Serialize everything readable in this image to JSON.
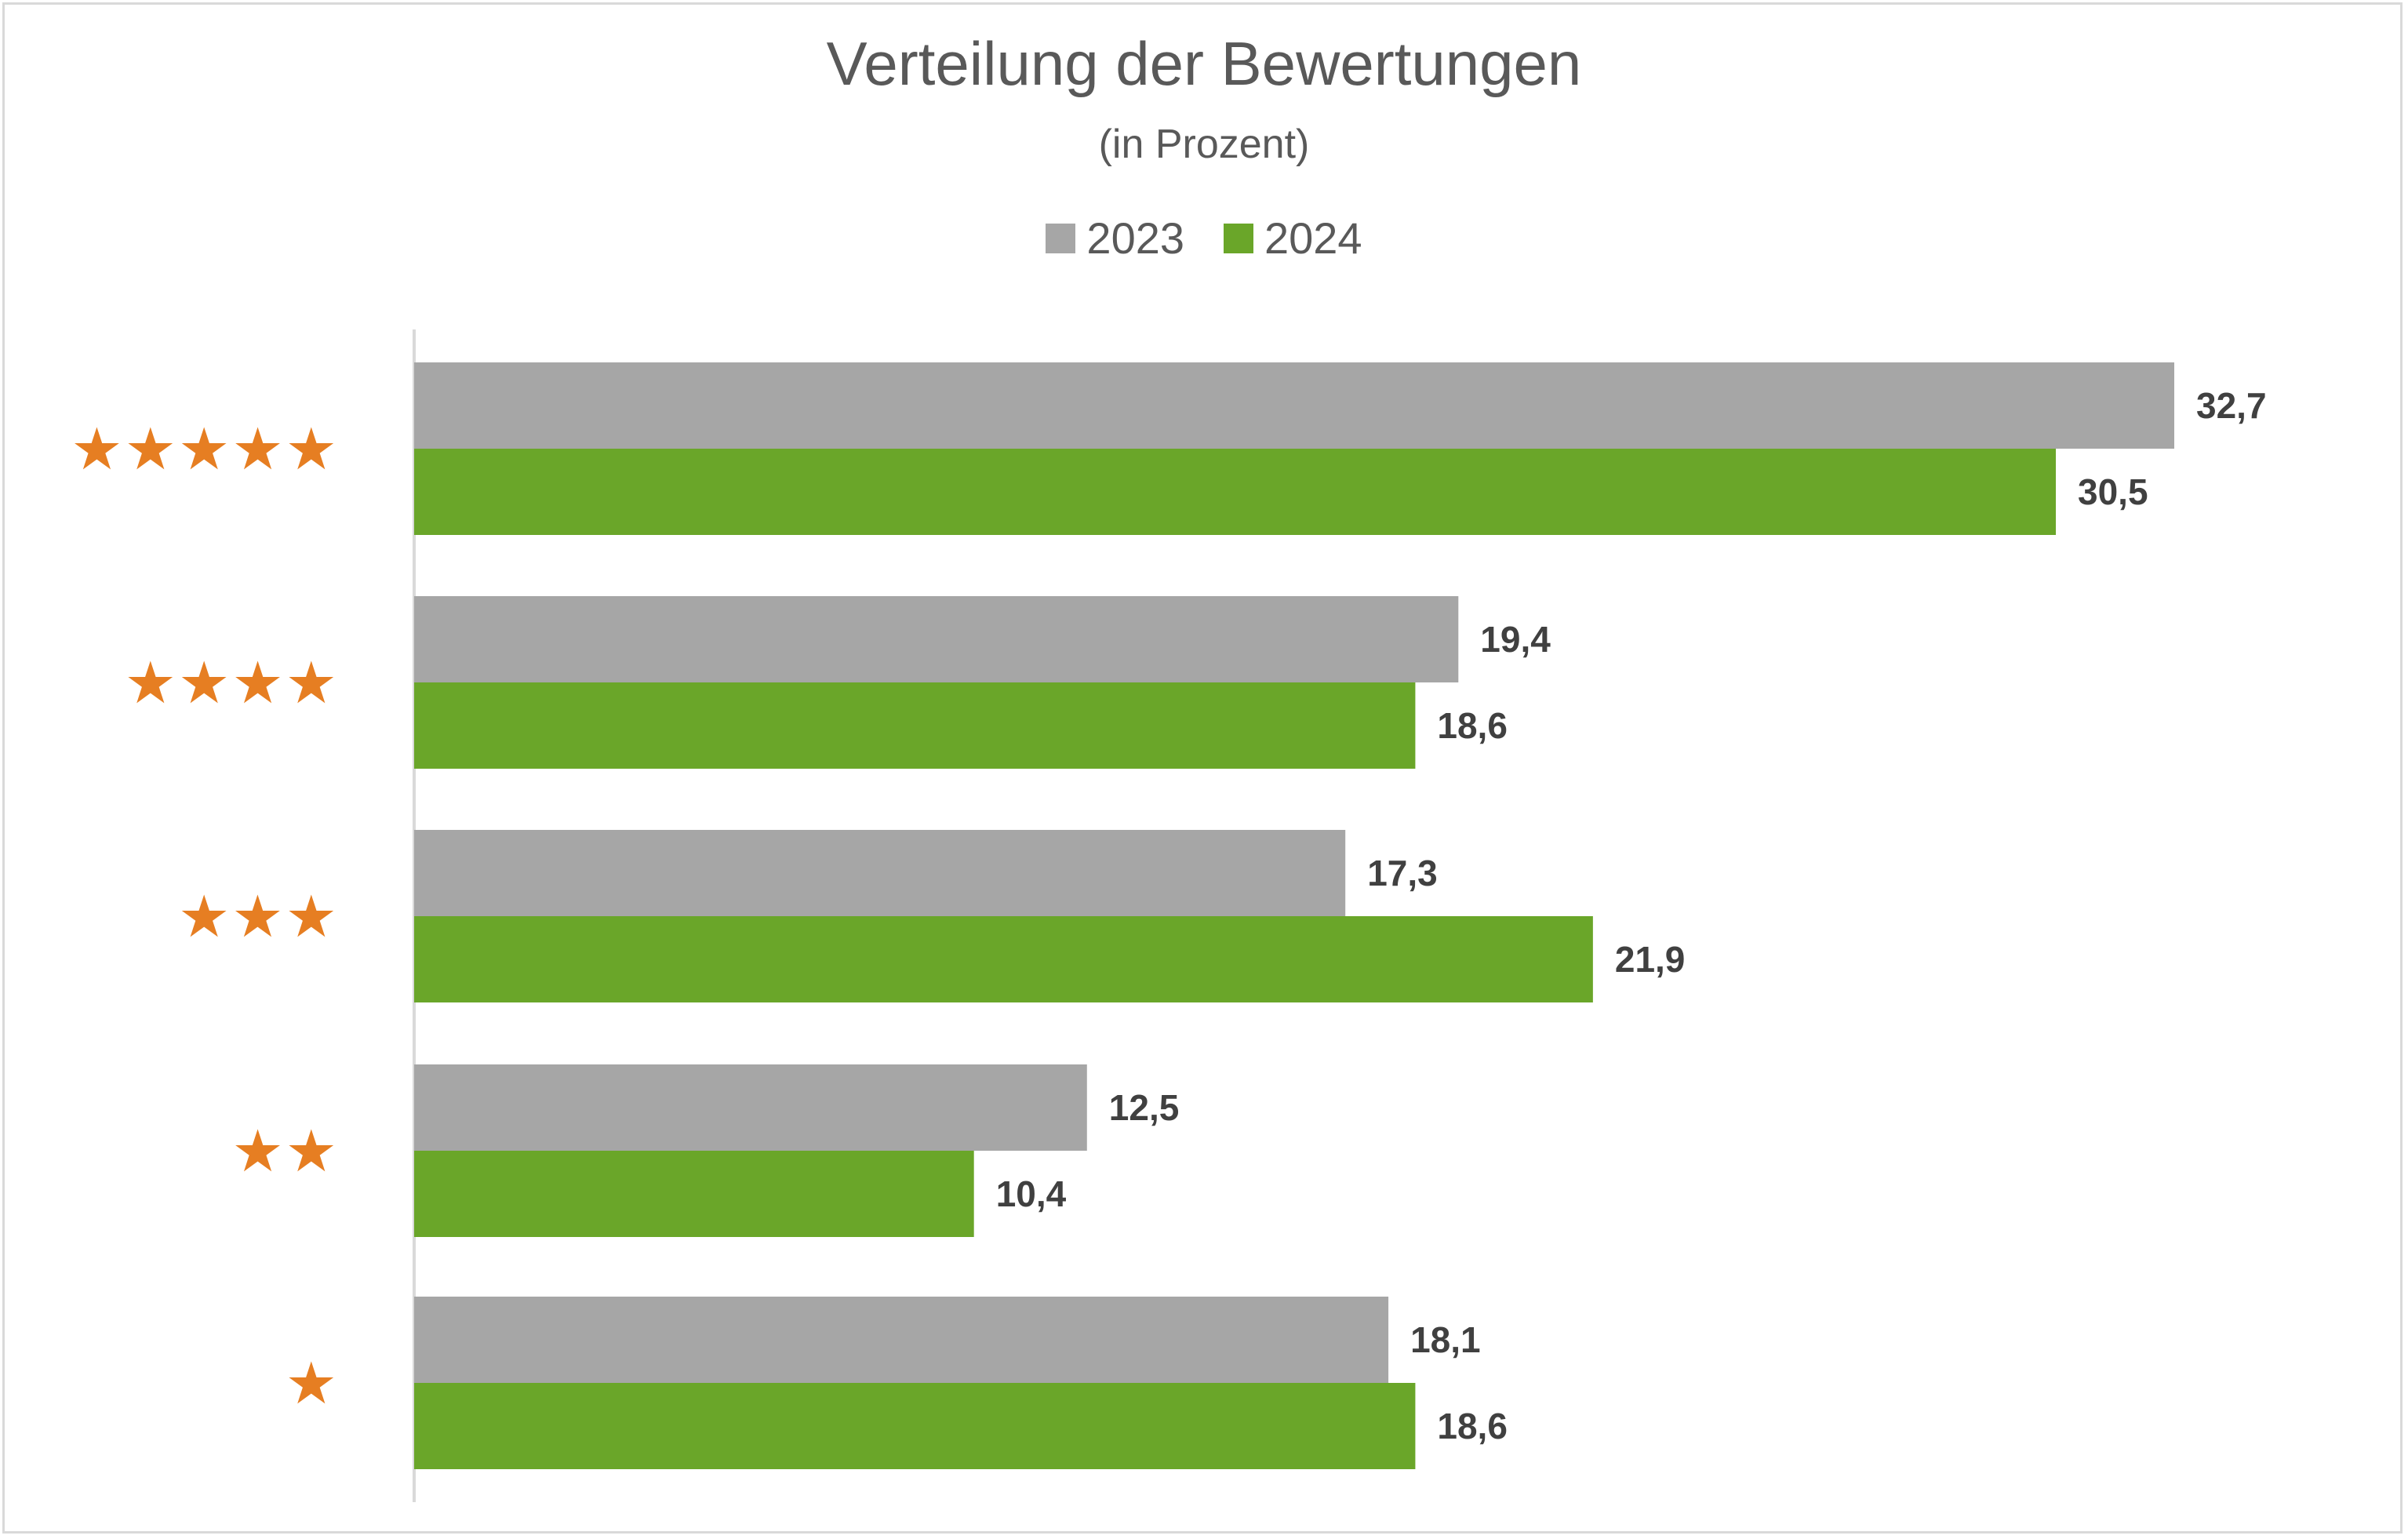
{
  "chart_data": {
    "type": "bar",
    "orientation": "horizontal",
    "title": "Verteilung der Bewertungen",
    "subtitle": "(in Prozent)",
    "categories": [
      "★★★★★",
      "★★★★",
      "★★★",
      "★★",
      "★"
    ],
    "series": [
      {
        "name": "2023",
        "color": "#a6a6a6",
        "values": [
          32.7,
          19.4,
          17.3,
          12.5,
          18.1
        ],
        "labels": [
          "32,7",
          "19,4",
          "17,3",
          "12,5",
          "18,1"
        ]
      },
      {
        "name": "2024",
        "color": "#6aa629",
        "values": [
          30.5,
          18.6,
          21.9,
          10.4,
          18.6
        ],
        "labels": [
          "30,5",
          "18,6",
          "21,9",
          "10,4",
          "18,6"
        ]
      }
    ],
    "xlim": [
      0,
      35
    ],
    "grid": false,
    "legend": "top-center",
    "category_label_color": "#e67e22"
  }
}
